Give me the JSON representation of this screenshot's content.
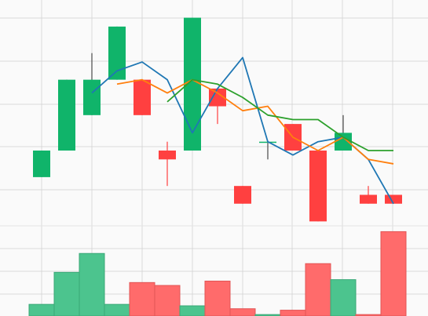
{
  "chart_data": {
    "type": "candlestick",
    "grid": true,
    "candles": [
      {
        "index": 0,
        "open": 4.0,
        "close": 7.0,
        "high": 7.0,
        "low": 4.0
      },
      {
        "index": 1,
        "open": 7.0,
        "close": 15.0,
        "high": 15.0,
        "low": 7.0
      },
      {
        "index": 2,
        "open": 11.0,
        "close": 15.0,
        "high": 18.0,
        "low": 11.0
      },
      {
        "index": 3,
        "open": 15.0,
        "close": 21.0,
        "high": 21.0,
        "low": 15.0
      },
      {
        "index": 4,
        "open": 15.0,
        "close": 11.0,
        "high": 15.0,
        "low": 11.0
      },
      {
        "index": 5,
        "open": 7.0,
        "close": 6.0,
        "high": 8.0,
        "low": 3.0
      },
      {
        "index": 6,
        "open": 7.0,
        "close": 22.0,
        "high": 22.0,
        "low": 7.0
      },
      {
        "index": 7,
        "open": 14.0,
        "close": 12.0,
        "high": 14.0,
        "low": 10.0
      },
      {
        "index": 8,
        "open": 3.0,
        "close": 1.0,
        "high": 3.0,
        "low": 1.0
      },
      {
        "index": 9,
        "open": 8.0,
        "close": 8.0,
        "high": 8.0,
        "low": 6.0
      },
      {
        "index": 10,
        "open": 10.0,
        "close": 7.0,
        "high": 10.0,
        "low": 7.0
      },
      {
        "index": 11,
        "open": 7.0,
        "close": -1.0,
        "high": 7.0,
        "low": -1.0
      },
      {
        "index": 12,
        "open": 7.0,
        "close": 9.0,
        "high": 11.0,
        "low": 7.0
      },
      {
        "index": 13,
        "open": 2.0,
        "close": 1.0,
        "high": 3.0,
        "low": 1.0
      },
      {
        "index": 14,
        "open": 2.0,
        "close": 1.0,
        "high": 2.0,
        "low": 1.0
      }
    ],
    "lines": [
      {
        "color": "#1f77b4",
        "values": [
          null,
          null,
          13.5,
          16.0,
          17.0,
          15.0,
          9.0,
          14.0,
          17.5,
          8.0,
          6.5,
          8.0,
          8.5,
          6.0,
          1.0
        ]
      },
      {
        "color": "#ff7f0e",
        "values": [
          null,
          null,
          null,
          14.5,
          15.0,
          13.5,
          15.0,
          13.5,
          11.5,
          12.0,
          8.5,
          7.0,
          8.5,
          6.0,
          5.5
        ]
      },
      {
        "color": "#2ca02c",
        "values": [
          null,
          null,
          null,
          null,
          null,
          12.5,
          15.0,
          14.5,
          13.0,
          11.0,
          10.5,
          10.5,
          8.5,
          7.0,
          7.0
        ]
      }
    ],
    "volume": [
      8,
      30,
      43,
      8,
      23,
      21,
      7,
      24,
      5,
      1,
      4,
      36,
      25,
      1,
      58
    ],
    "price_range": [
      -1.5,
      24.0
    ],
    "volume_range": [
      0,
      62
    ],
    "up_color": "#10b46a",
    "down_color": "#ff4040",
    "volume_up_color": "#4cc48e",
    "volume_down_color": "#ff6b6b"
  }
}
